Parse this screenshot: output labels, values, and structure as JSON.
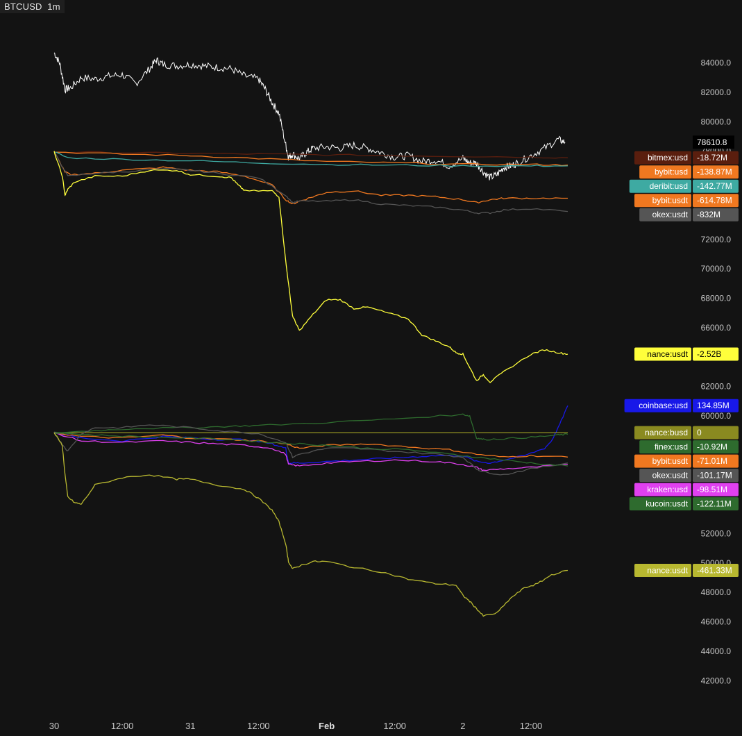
{
  "header": {
    "symbol": "BTCUSD",
    "interval": "1m"
  },
  "colors": {
    "background": "#131313",
    "price": "#ffffff",
    "axis_text": "#c9c9c9"
  },
  "chart_data": {
    "type": "line",
    "title": "",
    "xlabel": "",
    "ylabel": "",
    "x_ticks": [
      {
        "label": "30",
        "day": 0,
        "bold": false
      },
      {
        "label": "12:00",
        "day": 0.5,
        "bold": false
      },
      {
        "label": "31",
        "day": 1,
        "bold": false
      },
      {
        "label": "12:00",
        "day": 1.5,
        "bold": false
      },
      {
        "label": "Feb",
        "day": 2,
        "bold": true
      },
      {
        "label": "12:00",
        "day": 2.5,
        "bold": false
      },
      {
        "label": "2",
        "day": 3,
        "bold": false
      },
      {
        "label": "12:00",
        "day": 3.5,
        "bold": false
      }
    ],
    "xlim_days": [
      0.0,
      3.77
    ],
    "y_axis": {
      "ylim": [
        40600,
        86200
      ],
      "ticks": [
        "84000.0",
        "82000.0",
        "80000.0",
        "78000.0",
        "72000.0",
        "70000.0",
        "68000.0",
        "66000.0",
        "62000.0",
        "60000.0",
        "52000.0",
        "50000.0",
        "48000.0",
        "46000.0",
        "44000.0",
        "42000.0"
      ],
      "tick_values": [
        84000,
        82000,
        80000,
        78000,
        72000,
        70000,
        68000,
        66000,
        62000,
        60000,
        52000,
        50000,
        48000,
        46000,
        44000,
        42000
      ]
    },
    "price": {
      "name": "BTCUSD",
      "color": "#ffffff",
      "last_label": "78610.8",
      "last_value": 78610.8,
      "x": [
        0.0,
        0.04,
        0.08,
        0.12,
        0.2,
        0.3,
        0.4,
        0.5,
        0.6,
        0.7,
        0.75,
        0.8,
        0.9,
        1.0,
        1.1,
        1.2,
        1.3,
        1.4,
        1.5,
        1.55,
        1.6,
        1.65,
        1.7,
        1.72,
        1.75,
        1.8,
        1.85,
        1.9,
        2.0,
        2.1,
        2.2,
        2.3,
        2.4,
        2.5,
        2.6,
        2.7,
        2.8,
        2.9,
        3.0,
        3.05,
        3.1,
        3.15,
        3.2,
        3.25,
        3.3,
        3.35,
        3.4,
        3.5,
        3.6,
        3.7,
        3.75
      ],
      "y": [
        84700,
        84000,
        82200,
        82300,
        83000,
        82900,
        83100,
        83200,
        82600,
        83600,
        84200,
        83900,
        83800,
        83900,
        83800,
        83700,
        83600,
        83100,
        82900,
        82200,
        81300,
        80600,
        78400,
        77600,
        77800,
        77500,
        77900,
        78200,
        78300,
        78200,
        78400,
        78200,
        77900,
        77600,
        77700,
        77300,
        77400,
        77000,
        77500,
        77200,
        77200,
        76600,
        76200,
        76400,
        76900,
        77000,
        77200,
        77700,
        78200,
        78800,
        78600
      ]
    },
    "top_panel": {
      "series": [
        {
          "label": "bitmex:usd",
          "value_label": "-18.72M",
          "color": "#5a1e0e",
          "text_color": "#ffffff",
          "x": [
            0,
            0.5,
            1,
            1.5,
            2,
            2.5,
            3,
            3.5,
            3.77
          ],
          "y": [
            77950,
            77900,
            77850,
            77800,
            77750,
            77700,
            77650,
            77600,
            77550
          ]
        },
        {
          "label": "bybit:usd",
          "value_label": "-138.87M",
          "color": "#f07820",
          "text_color": "#ffffff",
          "x": [
            0,
            0.5,
            1,
            1.5,
            2,
            2.5,
            3,
            3.5,
            3.77
          ],
          "y": [
            77950,
            77800,
            77700,
            77500,
            77300,
            77200,
            77100,
            77100,
            77050
          ]
        },
        {
          "label": "deribit:usd",
          "value_label": "-142.77M",
          "color": "#3eaaa2",
          "text_color": "#ffffff",
          "x": [
            0,
            0.1,
            0.5,
            1,
            1.5,
            2,
            2.5,
            3,
            3.5,
            3.77
          ],
          "y": [
            77950,
            77550,
            77450,
            77350,
            77200,
            77100,
            77050,
            77000,
            77000,
            77000
          ]
        },
        {
          "label": "bybit:usdt",
          "value_label": "-614.78M",
          "color": "#f07820",
          "text_color": "#ffffff",
          "x": [
            0,
            0.08,
            0.12,
            0.3,
            0.5,
            0.8,
            1.0,
            1.2,
            1.4,
            1.6,
            1.7,
            1.75,
            1.8,
            1.9,
            2.0,
            2.2,
            2.4,
            2.6,
            2.8,
            3.0,
            3.1,
            3.2,
            3.3,
            3.5,
            3.77
          ],
          "y": [
            77950,
            76600,
            76400,
            76500,
            76700,
            76900,
            76700,
            76600,
            76300,
            75700,
            74700,
            74400,
            74600,
            74900,
            75200,
            75300,
            75000,
            75000,
            74900,
            74700,
            74500,
            74700,
            74800,
            74800,
            74800
          ]
        },
        {
          "label": "okex:usdt",
          "value_label": "-832M",
          "color": "#555555",
          "text_color": "#ffffff",
          "x": [
            0,
            0.1,
            0.3,
            0.5,
            0.8,
            1.0,
            1.2,
            1.5,
            1.7,
            1.75,
            1.8,
            2.0,
            2.2,
            2.4,
            2.6,
            2.8,
            3.0,
            3.1,
            3.2,
            3.3,
            3.5,
            3.77
          ],
          "y": [
            77950,
            76300,
            76500,
            76600,
            76800,
            76700,
            76500,
            76200,
            75000,
            74500,
            74600,
            74600,
            74700,
            74400,
            74300,
            74200,
            74000,
            73800,
            73800,
            74000,
            74100,
            73900
          ]
        },
        {
          "label": "nance:usdt",
          "value_label": "-2.52B",
          "color": "#ffff3b",
          "text_color": "#000000",
          "x": [
            0,
            0.06,
            0.08,
            0.1,
            0.15,
            0.3,
            0.5,
            0.7,
            0.9,
            1.0,
            1.2,
            1.3,
            1.35,
            1.4,
            1.6,
            1.65,
            1.7,
            1.72,
            1.75,
            1.78,
            1.8,
            1.9,
            2.0,
            2.1,
            2.2,
            2.3,
            2.45,
            2.6,
            2.7,
            2.8,
            2.9,
            2.95,
            3.0,
            3.05,
            3.1,
            3.15,
            3.2,
            3.3,
            3.5,
            3.6,
            3.7,
            3.77
          ],
          "y": [
            77950,
            76300,
            75000,
            75400,
            75900,
            76300,
            76300,
            76700,
            76700,
            76400,
            76300,
            76200,
            75700,
            75300,
            75300,
            74900,
            70500,
            69000,
            66800,
            66200,
            65800,
            66900,
            67900,
            67900,
            67300,
            67400,
            67000,
            66600,
            65500,
            65100,
            64700,
            64300,
            64200,
            63300,
            62400,
            62800,
            62300,
            63000,
            64200,
            64500,
            64300,
            64200
          ]
        }
      ]
    },
    "bottom_panel": {
      "series": [
        {
          "label": "coinbase:usd",
          "value_label": "134.85M",
          "color": "#1818e8",
          "text_color": "#ffffff",
          "x": [
            0,
            0.2,
            0.5,
            0.8,
            1.0,
            1.2,
            1.4,
            1.6,
            1.7,
            1.72,
            1.8,
            2.0,
            2.2,
            2.4,
            2.6,
            2.8,
            3.0,
            3.1,
            3.2,
            3.3,
            3.45,
            3.6,
            3.65,
            3.7,
            3.77
          ],
          "y": [
            58860,
            58500,
            58300,
            58600,
            58500,
            58400,
            58400,
            58100,
            57800,
            56800,
            56800,
            56900,
            57000,
            57100,
            57200,
            57300,
            57300,
            56900,
            56800,
            57000,
            57300,
            57800,
            58300,
            59200,
            60700
          ]
        },
        {
          "label": "nance:busd",
          "value_label": "0",
          "color": "#8a8a20",
          "text_color": "#ffffff",
          "x": [
            0,
            3.77
          ],
          "y": [
            58860,
            58860
          ]
        },
        {
          "label": "finex:usd",
          "value_label": "-10.92M",
          "color": "#2e6b2e",
          "text_color": "#ffffff",
          "x": [
            0,
            0.3,
            0.6,
            1.0,
            1.3,
            1.5,
            2.0,
            2.5,
            3.0,
            3.05,
            3.1,
            3.15,
            3.3,
            3.5,
            3.7,
            3.77
          ],
          "y": [
            58860,
            59000,
            59150,
            59200,
            59300,
            59350,
            59550,
            59800,
            60100,
            60000,
            58500,
            58400,
            58450,
            58550,
            58700,
            58750
          ]
        },
        {
          "label": "bybit:usdt",
          "value_label": "-71.01M",
          "color": "#f07820",
          "text_color": "#ffffff",
          "x": [
            0,
            0.2,
            0.5,
            0.8,
            1.0,
            1.3,
            1.5,
            1.7,
            1.8,
            2.0,
            2.3,
            2.6,
            2.9,
            3.1,
            3.3,
            3.5,
            3.77
          ],
          "y": [
            58860,
            58600,
            58500,
            58700,
            58500,
            58400,
            58300,
            58100,
            57800,
            58000,
            58100,
            57900,
            57700,
            57400,
            57200,
            57300,
            57200
          ]
        },
        {
          "label": "kraken:usd",
          "value_label": "-98.51M",
          "color": "#e040f0",
          "text_color": "#ffffff",
          "x": [
            0,
            0.2,
            0.5,
            0.8,
            1.0,
            1.2,
            1.4,
            1.6,
            1.7,
            1.72,
            1.8,
            2.0,
            2.2,
            2.5,
            2.8,
            3.0,
            3.1,
            3.15,
            3.3,
            3.5,
            3.77
          ],
          "y": [
            58860,
            58300,
            58200,
            58300,
            58200,
            58100,
            58000,
            57800,
            57400,
            56700,
            56600,
            56800,
            56900,
            57000,
            56900,
            56700,
            56500,
            56300,
            56400,
            56500,
            56700
          ]
        },
        {
          "label": "okex:usdt",
          "value_label": "-101.17M",
          "color": "#555555",
          "text_color": "#ffffff",
          "x": [
            0,
            0.05,
            0.1,
            0.2,
            0.3,
            0.5,
            0.7,
            1.0,
            1.2,
            1.5,
            1.7,
            1.75,
            1.8,
            2.0,
            2.2,
            2.5,
            2.8,
            3.0,
            3.1,
            3.15,
            3.3,
            3.5,
            3.77
          ],
          "y": [
            58860,
            58200,
            57600,
            58800,
            59200,
            59200,
            59400,
            59200,
            59000,
            58800,
            58200,
            57200,
            57400,
            57800,
            57800,
            57600,
            57400,
            57200,
            56400,
            56200,
            56000,
            56400,
            56800
          ]
        },
        {
          "label": "kucoin:usdt",
          "value_label": "-122.11M",
          "color": "#2e6b2e",
          "text_color": "#ffffff",
          "x": [
            0,
            0.3,
            0.6,
            1.0,
            1.3,
            1.6,
            1.8,
            2.0,
            2.3,
            2.6,
            2.9,
            3.1,
            3.3,
            3.5,
            3.77
          ],
          "y": [
            58860,
            58700,
            58600,
            58500,
            58400,
            58200,
            58100,
            58000,
            57800,
            57700,
            57400,
            57200,
            57000,
            56800,
            56600
          ]
        },
        {
          "label": "nance:usdt",
          "value_label": "-461.33M",
          "color": "#b8b830",
          "text_color": "#ffffff",
          "x": [
            0,
            0.06,
            0.08,
            0.1,
            0.15,
            0.2,
            0.3,
            0.5,
            0.7,
            0.9,
            1.0,
            1.2,
            1.4,
            1.5,
            1.6,
            1.65,
            1.7,
            1.72,
            1.75,
            1.8,
            1.9,
            2.0,
            2.2,
            2.4,
            2.6,
            2.8,
            2.95,
            3.0,
            3.05,
            3.1,
            3.15,
            3.25,
            3.35,
            3.45,
            3.55,
            3.65,
            3.77
          ],
          "y": [
            58860,
            58000,
            56000,
            54500,
            54100,
            54000,
            55300,
            55800,
            56000,
            55700,
            55700,
            55300,
            55000,
            54400,
            53600,
            52800,
            51300,
            50100,
            49600,
            49800,
            50100,
            50100,
            49700,
            49400,
            48900,
            48600,
            48500,
            47800,
            47400,
            46900,
            46400,
            46600,
            47600,
            48300,
            48600,
            49200,
            49500
          ]
        }
      ]
    }
  }
}
